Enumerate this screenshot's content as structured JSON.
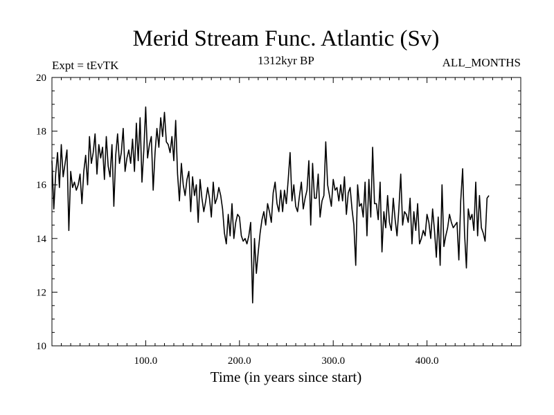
{
  "chart_data": {
    "type": "line",
    "title": "Merid Stream Func. Atlantic (Sv)",
    "subtitle_left": "Expt = tEvTK",
    "subtitle_center": "1312kyr BP",
    "subtitle_right": "ALL_MONTHS",
    "xlabel": "Time (in years since start)",
    "ylabel": "",
    "xlim": [
      0,
      500
    ],
    "ylim": [
      10,
      20
    ],
    "x_ticks": [
      100,
      200,
      300,
      400
    ],
    "x_tick_labels": [
      "100.0",
      "200.0",
      "300.0",
      "400.0"
    ],
    "y_ticks": [
      10,
      12,
      14,
      16,
      18,
      20
    ],
    "y_tick_labels": [
      "10",
      "12",
      "14",
      "16",
      "18",
      "20"
    ],
    "grid": false,
    "series": [
      {
        "name": "Merid Stream Func. Atlantic",
        "color": "#000000",
        "x_start": 0,
        "x_step": 2,
        "values": [
          16.9,
          15.1,
          16.4,
          17.2,
          15.9,
          17.5,
          16.3,
          16.8,
          17.3,
          14.3,
          16.5,
          15.9,
          16.1,
          15.8,
          16.0,
          16.4,
          15.3,
          16.5,
          17.1,
          16.0,
          17.8,
          16.8,
          17.2,
          17.9,
          16.4,
          17.5,
          17.0,
          17.4,
          16.2,
          17.8,
          16.7,
          16.3,
          17.5,
          15.2,
          17.1,
          17.9,
          16.8,
          17.2,
          18.1,
          16.5,
          17.0,
          17.3,
          16.8,
          17.7,
          16.5,
          18.3,
          16.9,
          18.5,
          16.1,
          17.3,
          18.9,
          17.0,
          17.5,
          17.8,
          15.8,
          17.2,
          18.1,
          17.4,
          18.5,
          17.8,
          18.7,
          17.6,
          17.5,
          17.2,
          17.8,
          16.9,
          18.4,
          16.4,
          15.4,
          16.8,
          16.0,
          15.6,
          16.2,
          16.5,
          15.0,
          16.3,
          15.6,
          16.0,
          14.6,
          16.2,
          15.5,
          15.0,
          15.4,
          15.9,
          15.5,
          14.8,
          16.1,
          15.3,
          15.5,
          15.9,
          15.6,
          15.1,
          14.2,
          13.8,
          14.9,
          14.1,
          15.3,
          14.0,
          14.6,
          14.9,
          14.8,
          14.1,
          13.9,
          14.0,
          13.8,
          14.1,
          14.6,
          11.6,
          14.0,
          12.7,
          13.5,
          14.2,
          14.7,
          15.0,
          14.5,
          15.3,
          15.0,
          14.6,
          15.7,
          16.1,
          15.3,
          15.0,
          15.8,
          15.0,
          15.8,
          15.3,
          16.2,
          17.2,
          15.4,
          16.0,
          15.2,
          15.0,
          15.6,
          16.1,
          15.1,
          15.5,
          15.8,
          16.9,
          14.5,
          16.8,
          15.5,
          15.5,
          16.4,
          14.8,
          15.4,
          15.6,
          17.6,
          16.0,
          15.6,
          15.2,
          16.2,
          15.8,
          15.9,
          15.4,
          16.0,
          15.4,
          16.3,
          14.9,
          15.7,
          15.9,
          15.1,
          14.5,
          13.0,
          16.0,
          15.2,
          15.3,
          14.8,
          16.1,
          14.1,
          16.2,
          14.8,
          17.4,
          15.3,
          15.3,
          14.7,
          16.1,
          13.5,
          15.0,
          14.4,
          15.6,
          14.6,
          14.3,
          15.5,
          14.7,
          14.1,
          15.1,
          16.4,
          14.5,
          15.0,
          14.9,
          14.6,
          15.5,
          13.8,
          15.0,
          14.3,
          15.3,
          13.8,
          14.0,
          14.3,
          14.1,
          14.9,
          14.6,
          14.0,
          15.1,
          14.3,
          13.3,
          14.8,
          13.0,
          16.0,
          13.7,
          14.1,
          14.4,
          14.9,
          14.6,
          14.4,
          14.5,
          14.6,
          13.2,
          15.4,
          16.6,
          14.2,
          12.9,
          15.1,
          14.7,
          14.9,
          14.3,
          16.1,
          14.1,
          15.6,
          14.4,
          14.2,
          13.9,
          15.5,
          15.6
        ]
      }
    ]
  }
}
